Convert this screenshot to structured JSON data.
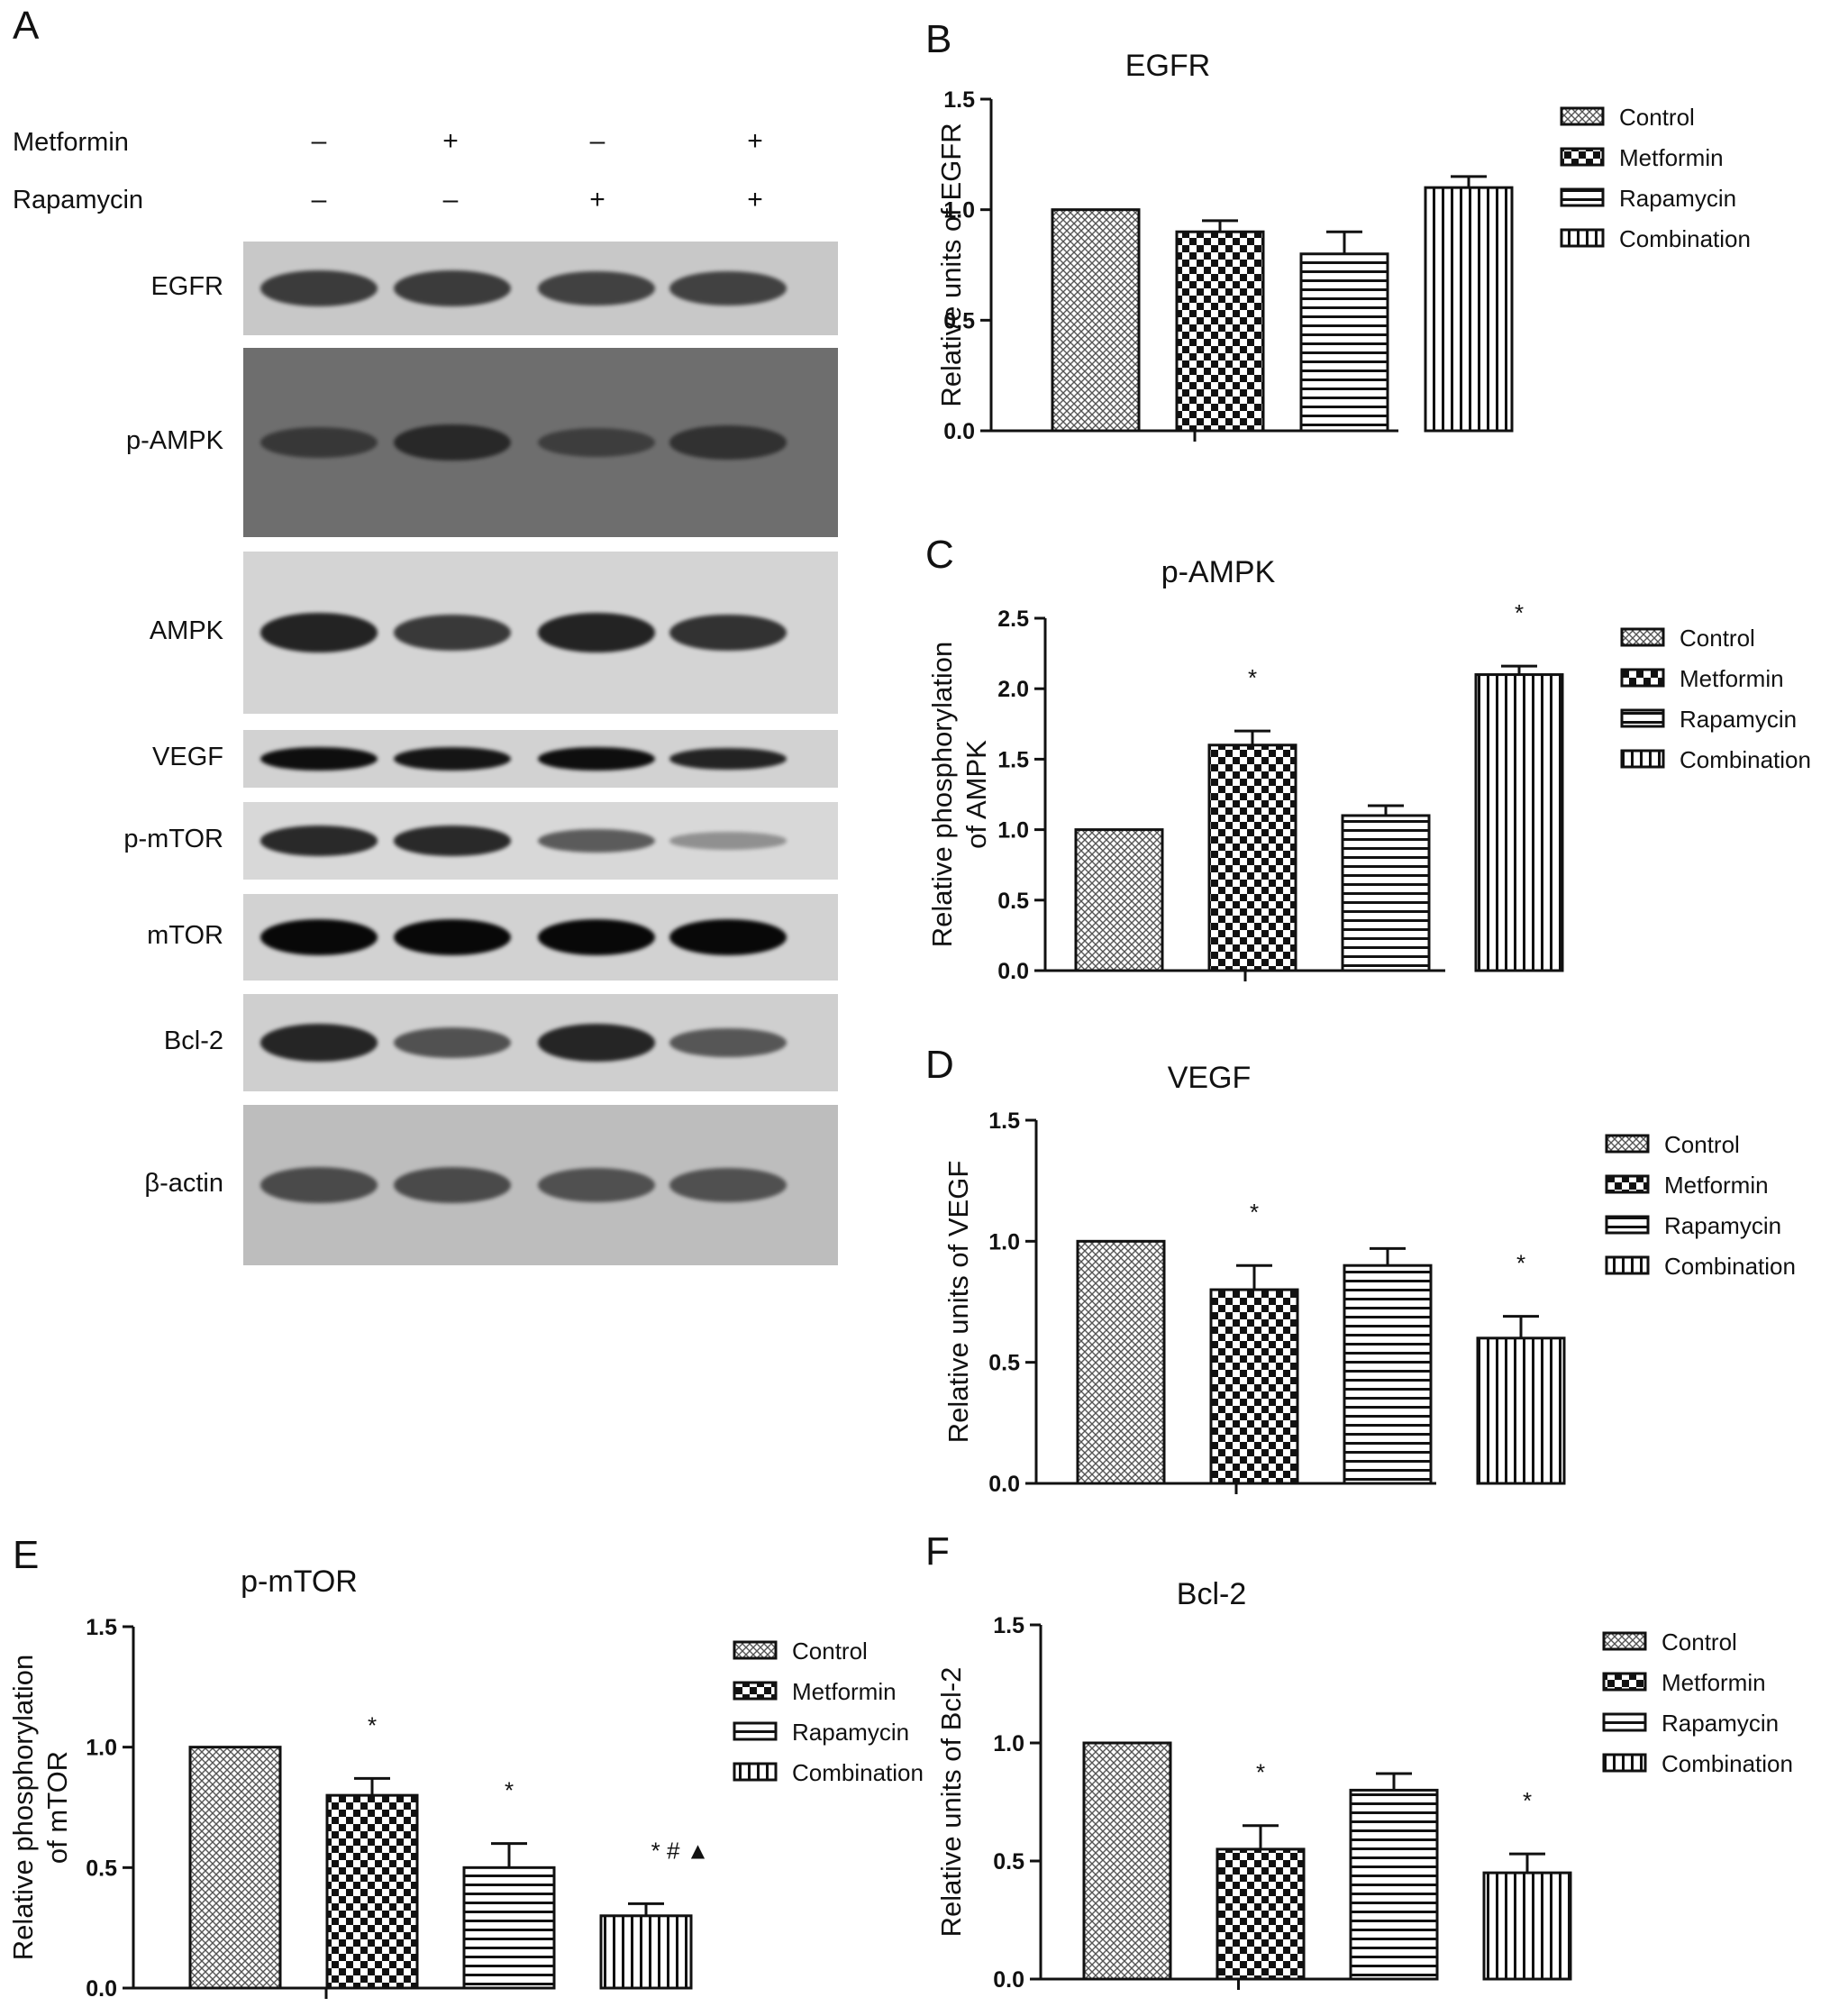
{
  "panel_a": {
    "letter": "A",
    "treatment_rows": [
      {
        "label": "Metformin",
        "marks": [
          "–",
          "+",
          "–",
          "+"
        ]
      },
      {
        "label": "Rapamycin",
        "marks": [
          "–",
          "–",
          "+",
          "+"
        ]
      }
    ],
    "blots": [
      {
        "label": "EGFR",
        "background": "#c8c8c8",
        "band_color": "#2a2a2a",
        "intensity": [
          0.85,
          0.85,
          0.8,
          0.8
        ]
      },
      {
        "label": "p-AMPK",
        "background": "#6e6e6e",
        "band_color": "#1c1c1c",
        "intensity": [
          0.55,
          0.8,
          0.45,
          0.65
        ]
      },
      {
        "label": "AMPK",
        "background": "#d4d4d4",
        "band_color": "#161616",
        "intensity": [
          0.9,
          0.75,
          0.9,
          0.8
        ]
      },
      {
        "label": "VEGF",
        "background": "#d2d2d2",
        "band_color": "#0e0e0e",
        "intensity": [
          1.0,
          0.95,
          1.0,
          0.85
        ]
      },
      {
        "label": "p-mTOR",
        "background": "#d8d8d8",
        "band_color": "#141414",
        "intensity": [
          0.85,
          0.85,
          0.5,
          0.15
        ]
      },
      {
        "label": "mTOR",
        "background": "#d2d2d2",
        "band_color": "#080808",
        "intensity": [
          1.0,
          1.0,
          1.0,
          1.0
        ]
      },
      {
        "label": "Bcl-2",
        "background": "#cfcfcf",
        "band_color": "#111111",
        "intensity": [
          0.85,
          0.55,
          0.85,
          0.5
        ]
      },
      {
        "label": "β-actin",
        "background": "#bdbdbd",
        "band_color": "#303030",
        "intensity": [
          0.75,
          0.75,
          0.7,
          0.7
        ]
      }
    ]
  },
  "chart_data": [
    {
      "panel": "B",
      "type": "bar",
      "title": "EGFR",
      "ylabel": [
        "Relative units of EGFR"
      ],
      "categories": [
        "Control",
        "Metformin",
        "Rapamycin",
        "Combination"
      ],
      "values": [
        1.0,
        0.9,
        0.8,
        1.1
      ],
      "errors": [
        0,
        0.05,
        0.1,
        0.05
      ],
      "annotations": [
        "",
        "",
        "",
        ""
      ],
      "ylim": [
        0,
        1.5
      ],
      "yticks": [
        "0.0",
        "0.5",
        "1.0",
        "1.5"
      ],
      "legend": [
        "Control",
        "Metformin",
        "Rapamycin",
        "Combination"
      ]
    },
    {
      "panel": "C",
      "type": "bar",
      "title": "p-AMPK",
      "ylabel": [
        "Relative phosphorylation",
        "of AMPK"
      ],
      "categories": [
        "Control",
        "Metformin",
        "Rapamycin",
        "Combination"
      ],
      "values": [
        1.0,
        1.6,
        1.1,
        2.1
      ],
      "errors": [
        0,
        0.1,
        0.07,
        0.06
      ],
      "annotations": [
        "",
        "*",
        "",
        "*"
      ],
      "ylim": [
        0,
        2.5
      ],
      "yticks": [
        "0.0",
        "0.5",
        "1.0",
        "1.5",
        "2.0",
        "2.5"
      ],
      "legend": [
        "Control",
        "Metformin",
        "Rapamycin",
        "Combination"
      ]
    },
    {
      "panel": "D",
      "type": "bar",
      "title": "VEGF",
      "ylabel": [
        "Relative units of VEGF"
      ],
      "categories": [
        "Control",
        "Metformin",
        "Rapamycin",
        "Combination"
      ],
      "values": [
        1.0,
        0.8,
        0.9,
        0.6
      ],
      "errors": [
        0,
        0.1,
        0.07,
        0.09
      ],
      "annotations": [
        "",
        "*",
        "",
        "*"
      ],
      "ylim": [
        0,
        1.5
      ],
      "yticks": [
        "0.0",
        "0.5",
        "1.0",
        "1.5"
      ],
      "legend": [
        "Control",
        "Metformin",
        "Rapamycin",
        "Combination"
      ]
    },
    {
      "panel": "E",
      "type": "bar",
      "title": "p-mTOR",
      "ylabel": [
        "Relative phosphorylation",
        "of mTOR"
      ],
      "categories": [
        "Control",
        "Metformin",
        "Rapamycin",
        "Combination"
      ],
      "values": [
        1.0,
        0.8,
        0.5,
        0.3
      ],
      "errors": [
        0,
        0.07,
        0.1,
        0.05
      ],
      "annotations": [
        "",
        "*",
        "*",
        "*   #   ▲"
      ],
      "ylim": [
        0,
        1.5
      ],
      "yticks": [
        "0.0",
        "0.5",
        "1.0",
        "1.5"
      ],
      "legend": [
        "Control",
        "Metformin",
        "Rapamycin",
        "Combination"
      ]
    },
    {
      "panel": "F",
      "type": "bar",
      "title": "Bcl-2",
      "ylabel": [
        "Relative units of Bcl-2"
      ],
      "categories": [
        "Control",
        "Metformin",
        "Rapamycin",
        "Combination"
      ],
      "values": [
        1.0,
        0.55,
        0.8,
        0.45
      ],
      "errors": [
        0,
        0.1,
        0.07,
        0.08
      ],
      "annotations": [
        "",
        "*",
        "",
        "*"
      ],
      "ylim": [
        0,
        1.5
      ],
      "yticks": [
        "0.0",
        "0.5",
        "1.0",
        "1.5"
      ],
      "legend": [
        "Control",
        "Metformin",
        "Rapamycin",
        "Combination"
      ]
    }
  ]
}
